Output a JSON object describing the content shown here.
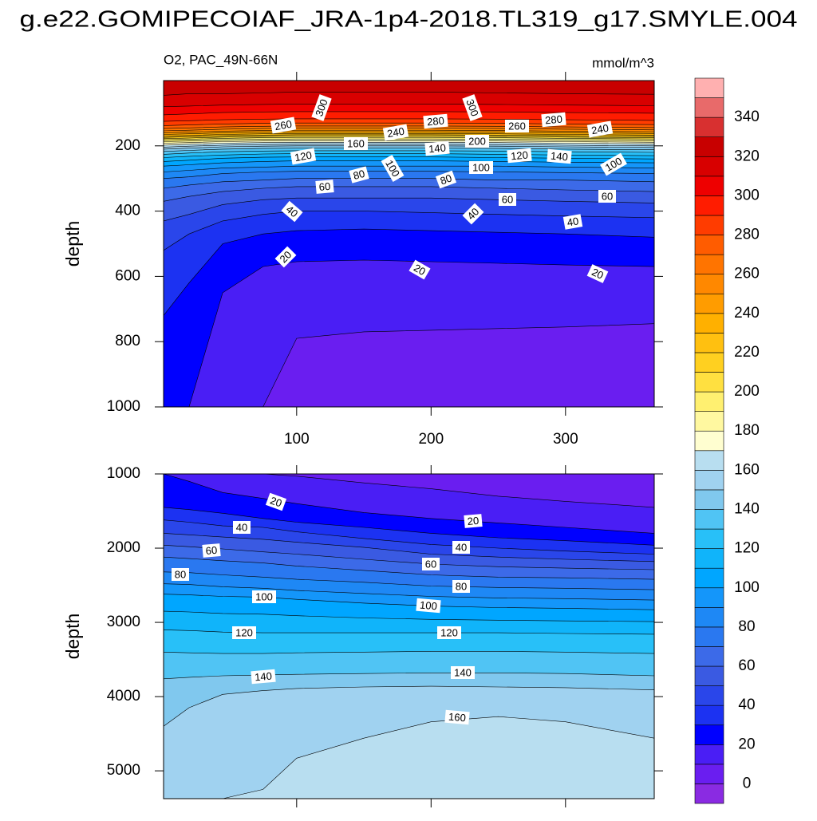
{
  "title": "g.e22.GOMIPECOIAF_JRA-1p4-2018.TL319_g17.SMYLE.004",
  "chart_data": [
    {
      "type": "contour",
      "subtitle": "O2, PAC_49N-66N",
      "units": "mmol/m^3",
      "y_label": "depth",
      "xlim": [
        1,
        366
      ],
      "ylim": [
        0,
        1000
      ],
      "y_reversed": true,
      "xticks": [
        100,
        200,
        300
      ],
      "yticks": [
        200,
        400,
        600,
        800,
        1000
      ],
      "high_side": "top",
      "x_samples": [
        1,
        20,
        45,
        75,
        100,
        150,
        200,
        250,
        300,
        366
      ],
      "contours": [
        {
          "level": 10,
          "depths": [
            1000,
            1000,
            1000,
            1000,
            790,
            770,
            765,
            760,
            755,
            745
          ]
        },
        {
          "level": 20,
          "depths": [
            1000,
            1000,
            650,
            570,
            555,
            550,
            555,
            560,
            565,
            570
          ]
        },
        {
          "level": 30,
          "depths": [
            720,
            620,
            500,
            470,
            460,
            455,
            460,
            465,
            470,
            480
          ]
        },
        {
          "level": 40,
          "depths": [
            520,
            470,
            430,
            410,
            400,
            400,
            405,
            410,
            415,
            420
          ]
        },
        {
          "level": 50,
          "depths": [
            430,
            410,
            380,
            365,
            360,
            360,
            360,
            365,
            370,
            375
          ]
        },
        {
          "level": 60,
          "depths": [
            370,
            355,
            340,
            330,
            325,
            325,
            325,
            330,
            335,
            340
          ]
        },
        {
          "level": 70,
          "depths": [
            330,
            320,
            310,
            305,
            300,
            300,
            300,
            305,
            305,
            310
          ]
        },
        {
          "level": 80,
          "depths": [
            300,
            295,
            285,
            280,
            278,
            278,
            278,
            280,
            282,
            285
          ]
        },
        {
          "level": 90,
          "depths": [
            280,
            275,
            268,
            265,
            262,
            262,
            262,
            262,
            265,
            268
          ]
        },
        {
          "level": 100,
          "depths": [
            262,
            258,
            252,
            248,
            246,
            246,
            246,
            248,
            250,
            252
          ]
        },
        {
          "level": 110,
          "depths": [
            248,
            244,
            238,
            235,
            234,
            234,
            234,
            236,
            238,
            240
          ]
        },
        {
          "level": 120,
          "depths": [
            236,
            232,
            228,
            225,
            224,
            224,
            224,
            226,
            228,
            230
          ]
        },
        {
          "level": 130,
          "depths": [
            226,
            222,
            218,
            216,
            215,
            215,
            215,
            216,
            218,
            220
          ]
        },
        {
          "level": 140,
          "depths": [
            217,
            214,
            210,
            208,
            207,
            207,
            207,
            208,
            210,
            212
          ]
        },
        {
          "level": 150,
          "depths": [
            210,
            207,
            203,
            201,
            200,
            200,
            200,
            201,
            203,
            205
          ]
        },
        {
          "level": 160,
          "depths": [
            204,
            201,
            198,
            196,
            195,
            195,
            195,
            196,
            198,
            200
          ]
        },
        {
          "level": 170,
          "depths": [
            198,
            195,
            192,
            190,
            189,
            189,
            189,
            190,
            192,
            194
          ]
        },
        {
          "level": 180,
          "depths": [
            192,
            190,
            187,
            185,
            184,
            184,
            184,
            185,
            187,
            189
          ]
        },
        {
          "level": 190,
          "depths": [
            187,
            185,
            182,
            180,
            179,
            179,
            179,
            180,
            182,
            184
          ]
        },
        {
          "level": 200,
          "depths": [
            182,
            180,
            177,
            175,
            174,
            174,
            174,
            175,
            177,
            179
          ]
        },
        {
          "level": 210,
          "depths": [
            178,
            176,
            173,
            171,
            170,
            170,
            170,
            171,
            173,
            175
          ]
        },
        {
          "level": 220,
          "depths": [
            174,
            172,
            169,
            167,
            166,
            166,
            166,
            167,
            169,
            171
          ]
        },
        {
          "level": 230,
          "depths": [
            170,
            168,
            165,
            163,
            162,
            162,
            162,
            163,
            165,
            167
          ]
        },
        {
          "level": 240,
          "depths": [
            165,
            163,
            160,
            158,
            157,
            157,
            157,
            158,
            160,
            162
          ]
        },
        {
          "level": 250,
          "depths": [
            160,
            158,
            155,
            153,
            152,
            152,
            152,
            153,
            155,
            157
          ]
        },
        {
          "level": 260,
          "depths": [
            154,
            152,
            149,
            147,
            146,
            146,
            146,
            147,
            149,
            151
          ]
        },
        {
          "level": 270,
          "depths": [
            147,
            145,
            142,
            140,
            139,
            139,
            139,
            140,
            142,
            144
          ]
        },
        {
          "level": 280,
          "depths": [
            138,
            136,
            133,
            131,
            130,
            130,
            130,
            131,
            133,
            135
          ]
        },
        {
          "level": 290,
          "depths": [
            125,
            123,
            120,
            118,
            117,
            117,
            117,
            118,
            120,
            122
          ]
        },
        {
          "level": 300,
          "depths": [
            105,
            102,
            98,
            96,
            95,
            95,
            95,
            96,
            98,
            100
          ]
        },
        {
          "level": 310,
          "depths": [
            80,
            78,
            75,
            73,
            72,
            72,
            72,
            73,
            75,
            77
          ]
        },
        {
          "level": 320,
          "depths": [
            45,
            40,
            40,
            38,
            35,
            35,
            35,
            38,
            40,
            42
          ]
        }
      ],
      "labels": [
        300,
        260,
        300,
        280,
        240,
        160,
        140,
        200,
        260,
        280,
        240,
        120,
        100,
        100,
        120,
        140,
        100,
        80,
        80,
        60,
        60,
        60,
        40,
        40,
        40,
        20,
        20,
        20
      ]
    },
    {
      "type": "contour",
      "y_label": "depth",
      "xlim": [
        1,
        366
      ],
      "ylim": [
        1000,
        5375
      ],
      "y_reversed": true,
      "xtick_marks": [
        100,
        200,
        300
      ],
      "yticks": [
        1000,
        2000,
        3000,
        4000,
        5000
      ],
      "high_side": "bottom",
      "x_samples": [
        1,
        20,
        45,
        75,
        100,
        150,
        200,
        250,
        300,
        366
      ],
      "contours": [
        {
          "level": 10,
          "depths": [
            1000,
            1000,
            1000,
            1000,
            1030,
            1120,
            1200,
            1300,
            1370,
            1450
          ]
        },
        {
          "level": 20,
          "depths": [
            1000,
            1100,
            1250,
            1330,
            1400,
            1520,
            1600,
            1660,
            1720,
            1800
          ]
        },
        {
          "level": 30,
          "depths": [
            1450,
            1480,
            1530,
            1600,
            1650,
            1720,
            1800,
            1860,
            1900,
            1960
          ]
        },
        {
          "level": 40,
          "depths": [
            1620,
            1650,
            1700,
            1720,
            1780,
            1870,
            1950,
            2000,
            2040,
            2080
          ]
        },
        {
          "level": 50,
          "depths": [
            1800,
            1820,
            1850,
            1880,
            1920,
            1990,
            2080,
            2120,
            2150,
            2180
          ]
        },
        {
          "level": 60,
          "depths": [
            1960,
            1980,
            2010,
            2050,
            2080,
            2150,
            2215,
            2250,
            2270,
            2290
          ]
        },
        {
          "level": 70,
          "depths": [
            2120,
            2140,
            2170,
            2200,
            2240,
            2300,
            2360,
            2390,
            2400,
            2420
          ]
        },
        {
          "level": 80,
          "depths": [
            2320,
            2330,
            2360,
            2390,
            2420,
            2460,
            2510,
            2530,
            2540,
            2560
          ]
        },
        {
          "level": 90,
          "depths": [
            2480,
            2490,
            2520,
            2540,
            2570,
            2610,
            2650,
            2670,
            2680,
            2700
          ]
        },
        {
          "level": 100,
          "depths": [
            2620,
            2630,
            2650,
            2660,
            2690,
            2740,
            2780,
            2800,
            2810,
            2830
          ]
        },
        {
          "level": 110,
          "depths": [
            2850,
            2860,
            2880,
            2890,
            2910,
            2940,
            2960,
            2970,
            2980,
            2990
          ]
        },
        {
          "level": 120,
          "depths": [
            3100,
            3110,
            3130,
            3140,
            3140,
            3140,
            3140,
            3140,
            3150,
            3160
          ]
        },
        {
          "level": 130,
          "depths": [
            3400,
            3410,
            3420,
            3420,
            3410,
            3400,
            3390,
            3390,
            3400,
            3420
          ]
        },
        {
          "level": 140,
          "depths": [
            3760,
            3740,
            3720,
            3710,
            3700,
            3690,
            3680,
            3680,
            3690,
            3720
          ]
        },
        {
          "level": 150,
          "depths": [
            4400,
            4150,
            3970,
            3920,
            3890,
            3870,
            3860,
            3870,
            3880,
            3910
          ]
        },
        {
          "level": 160,
          "depths": [
            5375,
            5375,
            5375,
            5250,
            4830,
            4560,
            4340,
            4270,
            4340,
            4560
          ]
        }
      ],
      "labels": [
        20,
        20,
        40,
        40,
        60,
        60,
        80,
        80,
        100,
        100,
        120,
        120,
        140,
        140,
        160
      ]
    },
    {
      "type": "colorbar",
      "levels": [
        0,
        10,
        20,
        30,
        40,
        50,
        60,
        70,
        80,
        90,
        100,
        110,
        120,
        130,
        140,
        150,
        160,
        170,
        180,
        190,
        200,
        210,
        220,
        230,
        240,
        250,
        260,
        270,
        280,
        290,
        300,
        310,
        320,
        330,
        340,
        350
      ],
      "ticks": [
        0,
        20,
        40,
        60,
        80,
        100,
        120,
        140,
        160,
        180,
        200,
        220,
        240,
        260,
        280,
        300,
        320,
        340
      ],
      "colors": [
        "#8a2be2",
        "#6a1ef0",
        "#4a1ef5",
        "#0000ff",
        "#1c32f2",
        "#2a46ea",
        "#3a5ae2",
        "#3c6ae8",
        "#2a78f0",
        "#1e88f5",
        "#1496fa",
        "#00a6ff",
        "#10b4fa",
        "#28c0f8",
        "#50c4f4",
        "#80c8ee",
        "#a0d2f0",
        "#b8def0",
        "#fffed0",
        "#fff8a0",
        "#fff070",
        "#ffe040",
        "#ffd020",
        "#ffc010",
        "#ffb000",
        "#ff9c00",
        "#ff8800",
        "#ff7400",
        "#ff5c00",
        "#ff3c00",
        "#ff1c00",
        "#ee0000",
        "#d80000",
        "#c80000",
        "#d83030",
        "#e86a6a",
        "#ffb0b0"
      ]
    }
  ]
}
